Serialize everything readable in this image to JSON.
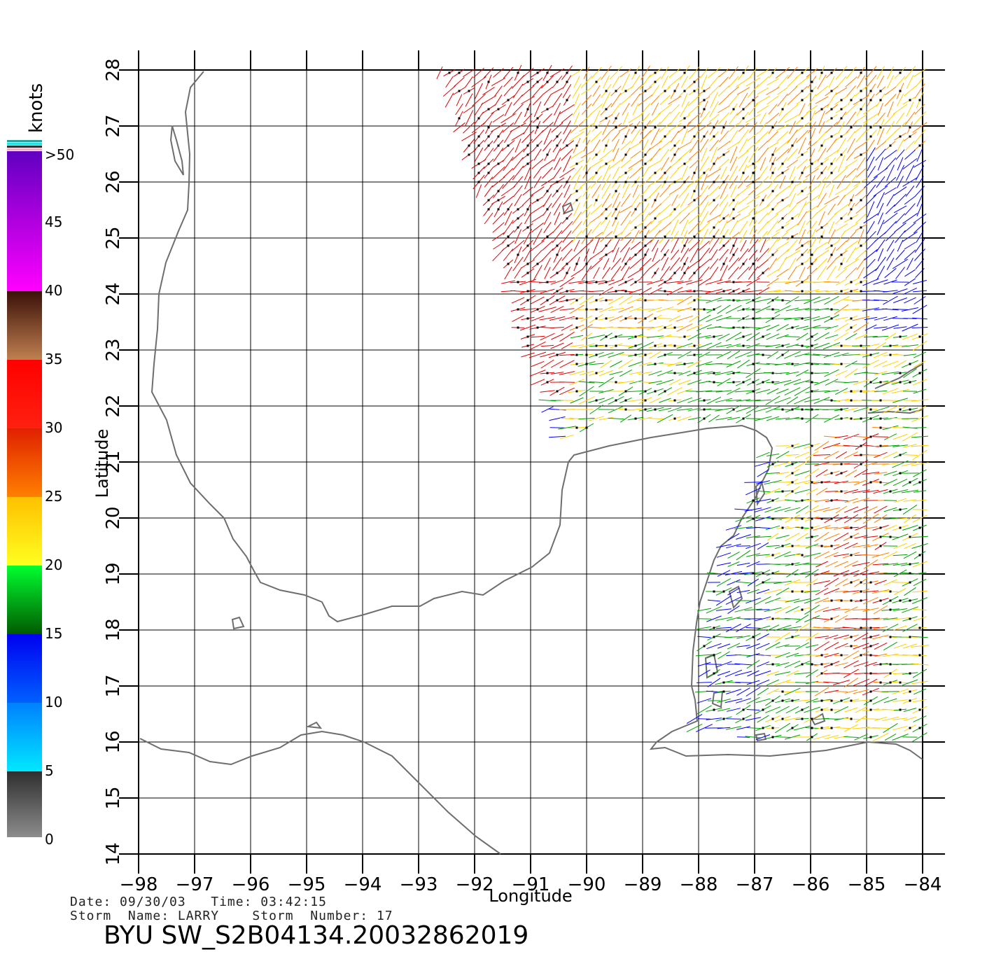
{
  "legend": {
    "title": "knots",
    "ticks": [
      {
        "value": 0,
        "label": "0"
      },
      {
        "value": 5,
        "label": "5"
      },
      {
        "value": 10,
        "label": "10"
      },
      {
        "value": 15,
        "label": "15"
      },
      {
        "value": 20,
        "label": "20"
      },
      {
        "value": 25,
        "label": "25"
      },
      {
        "value": 30,
        "label": "30"
      },
      {
        "value": 35,
        "label": "35"
      },
      {
        "value": 40,
        "label": "40"
      },
      {
        "value": 45,
        "label": "45"
      },
      {
        "value": 50,
        "label": ">50"
      }
    ],
    "colors": {
      "0-5": [
        "#8c8c8c",
        "#2e2e2e"
      ],
      "5-10": [
        "#00e8ff",
        "#0080ff"
      ],
      "10-15": [
        "#0060ff",
        "#0000f0"
      ],
      "15-20": [
        "#005a00",
        "#00ff30"
      ],
      "20-25": [
        "#ffff20",
        "#ffc000"
      ],
      "25-30": [
        "#ff8000",
        "#e02000"
      ],
      "30-35": [
        "#ff2010",
        "#ff0000"
      ],
      "35-40": [
        "#c08050",
        "#3a1008"
      ],
      "40-50": [
        "#ff00ff",
        "#6000c0"
      ]
    }
  },
  "map": {
    "xlabel": "Longitude",
    "ylabel": "Latitude",
    "lon_range": [
      -98,
      -84
    ],
    "lat_range": [
      14,
      28
    ],
    "lon_ticks": [
      "-98",
      "-97",
      "-96",
      "-95",
      "-94",
      "-93",
      "-92",
      "-91",
      "-90",
      "-89",
      "-88",
      "-87",
      "-86",
      "-85",
      "-84"
    ],
    "lat_ticks": [
      "14",
      "15",
      "16",
      "17",
      "18",
      "19",
      "20",
      "21",
      "22",
      "23",
      "24",
      "25",
      "26",
      "27",
      "28"
    ],
    "grid": true,
    "coastline_color": "#6e6e6e",
    "wind_vector_palette": [
      "#0000ff",
      "#00a000",
      "#ffd000",
      "#ff8000",
      "#e00000"
    ]
  },
  "footer": {
    "line1": "Date: 09/30/03   Time: 03:42:15",
    "line2": "Storm  Name: LARRY    Storm  Number: 17",
    "product": "BYU  SW_S2B04134.20032862019"
  }
}
